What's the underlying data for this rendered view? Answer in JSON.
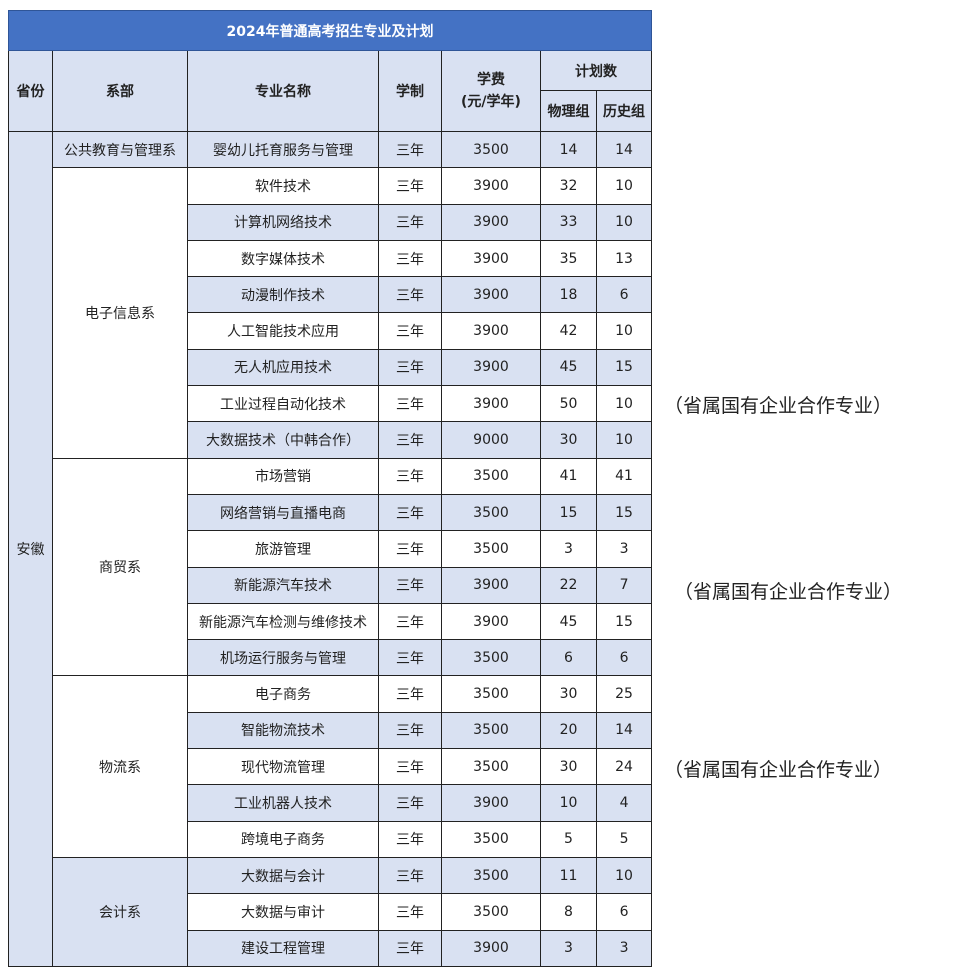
{
  "title": "2024年普通高考招生专业及计划",
  "headers": {
    "province": "省份",
    "department": "系部",
    "major": "专业名称",
    "duration": "学制",
    "tuition": "学费\n(元/学年)",
    "plan": "计划数",
    "physics": "物理组",
    "history": "历史组"
  },
  "province": "安徽",
  "departments": [
    {
      "name": "公共教育与管理系",
      "majors": [
        [
          "婴幼儿托育服务与管理",
          "三年",
          "3500",
          "14",
          "14"
        ]
      ]
    },
    {
      "name": "电子信息系",
      "majors": [
        [
          "软件技术",
          "三年",
          "3900",
          "32",
          "10"
        ],
        [
          "计算机网络技术",
          "三年",
          "3900",
          "33",
          "10"
        ],
        [
          "数字媒体技术",
          "三年",
          "3900",
          "35",
          "13"
        ],
        [
          "动漫制作技术",
          "三年",
          "3900",
          "18",
          "6"
        ],
        [
          "人工智能技术应用",
          "三年",
          "3900",
          "42",
          "10"
        ],
        [
          "无人机应用技术",
          "三年",
          "3900",
          "45",
          "15"
        ],
        [
          "工业过程自动化技术",
          "三年",
          "3900",
          "50",
          "10"
        ],
        [
          "大数据技术（中韩合作）",
          "三年",
          "9000",
          "30",
          "10"
        ]
      ]
    },
    {
      "name": "商贸系",
      "majors": [
        [
          "市场营销",
          "三年",
          "3500",
          "41",
          "41"
        ],
        [
          "网络营销与直播电商",
          "三年",
          "3500",
          "15",
          "15"
        ],
        [
          "旅游管理",
          "三年",
          "3500",
          "3",
          "3"
        ],
        [
          "新能源汽车技术",
          "三年",
          "3900",
          "22",
          "7"
        ],
        [
          "新能源汽车检测与维修技术",
          "三年",
          "3900",
          "45",
          "15"
        ],
        [
          "机场运行服务与管理",
          "三年",
          "3500",
          "6",
          "6"
        ]
      ]
    },
    {
      "name": "物流系",
      "majors": [
        [
          "电子商务",
          "三年",
          "3500",
          "30",
          "25"
        ],
        [
          "智能物流技术",
          "三年",
          "3500",
          "20",
          "14"
        ],
        [
          "现代物流管理",
          "三年",
          "3500",
          "30",
          "24"
        ],
        [
          "工业机器人技术",
          "三年",
          "3900",
          "10",
          "4"
        ],
        [
          "跨境电子商务",
          "三年",
          "3500",
          "5",
          "5"
        ]
      ]
    },
    {
      "name": "会计系",
      "majors": [
        [
          "大数据与会计",
          "三年",
          "3500",
          "11",
          "10"
        ],
        [
          "大数据与审计",
          "三年",
          "3500",
          "8",
          "6"
        ],
        [
          "建设工程管理",
          "三年",
          "3900",
          "3",
          "3"
        ]
      ]
    }
  ],
  "annotations": [
    "（省属国有企业合作专业）",
    "（省属国有企业合作专业）",
    "（省属国有企业合作专业）"
  ],
  "colors": {
    "title_bg": "#4472C4",
    "shade": "#D9E1F2"
  }
}
